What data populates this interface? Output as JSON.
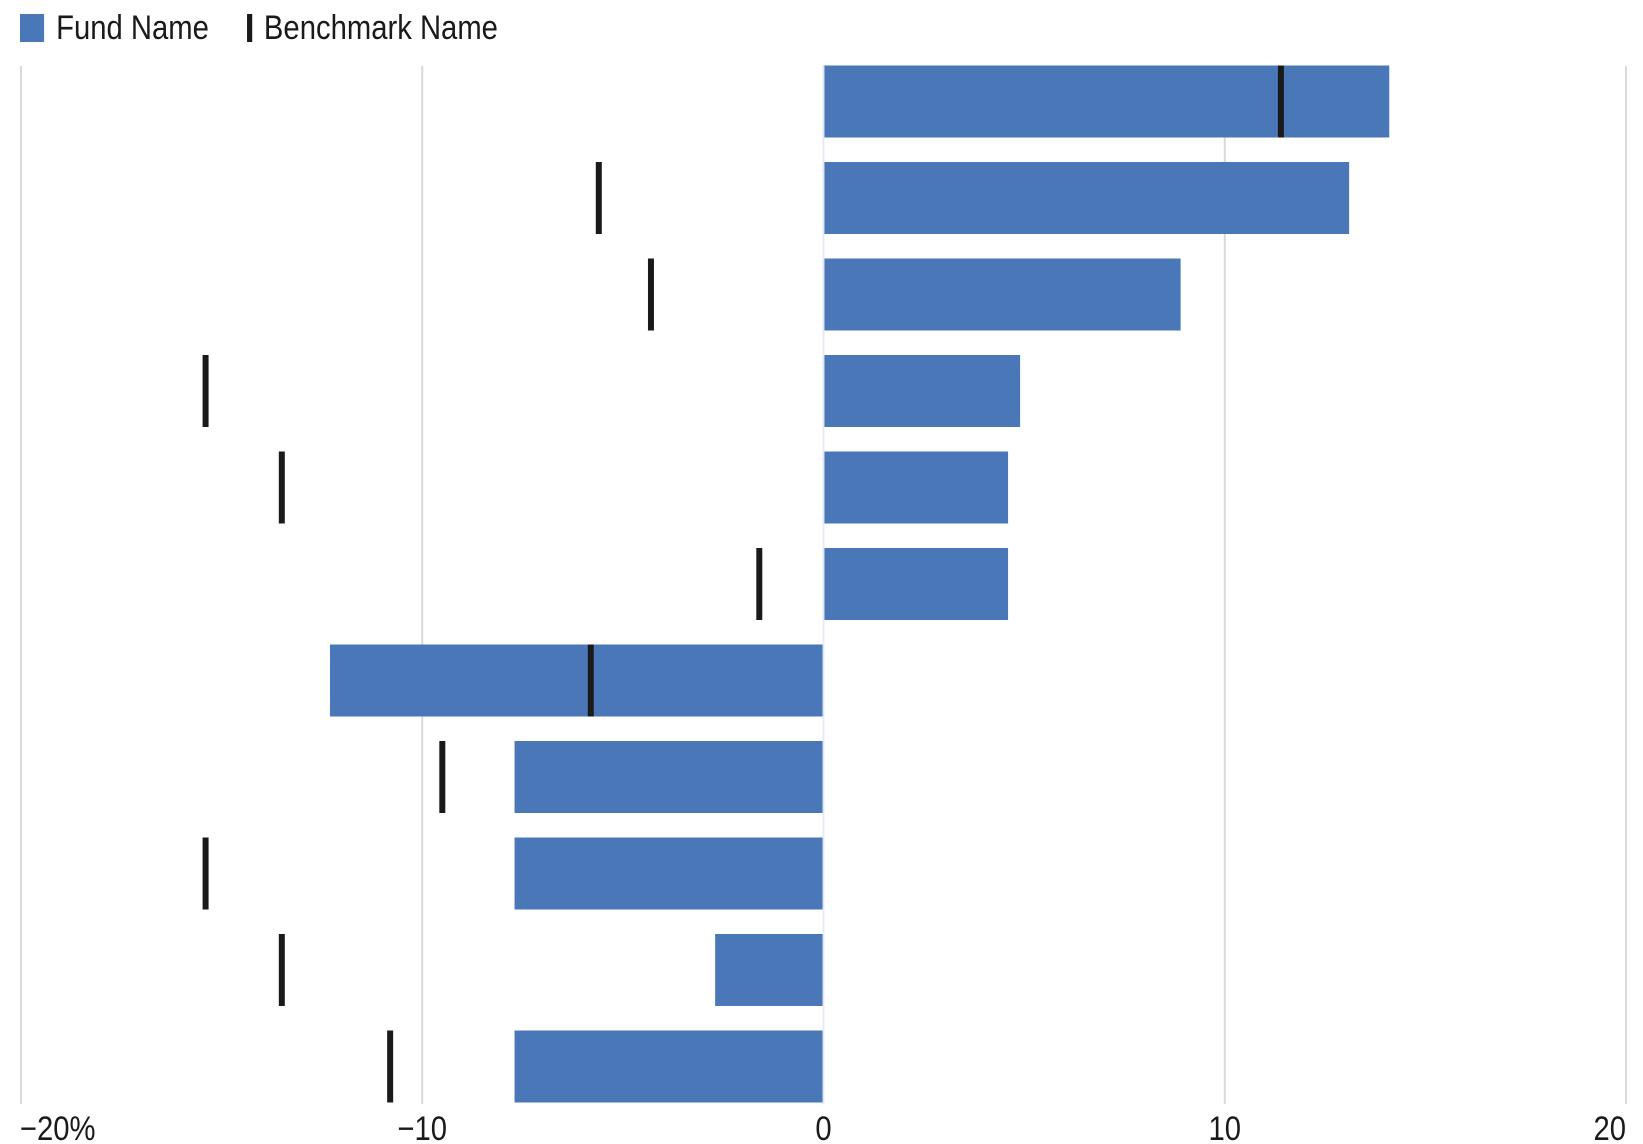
{
  "legend": {
    "fund_label": "Fund Name",
    "benchmark_label": "Benchmark Name"
  },
  "colors": {
    "fund_bar": "#4a77b7",
    "benchmark_tick": "#1a1a1a",
    "gridline": "#d9d9d9"
  },
  "chart_data": {
    "type": "bar",
    "orientation": "horizontal",
    "title": "",
    "xlabel": "",
    "ylabel": "",
    "xlim": [
      -20,
      20
    ],
    "x_ticks": [
      -20,
      -10,
      0,
      10,
      20
    ],
    "x_tick_labels": [
      "−20%",
      "−10",
      "0",
      "10",
      "20"
    ],
    "grid": true,
    "legend_position": "top-left",
    "categories": [
      "",
      "",
      "",
      "",
      "",
      "",
      "",
      "",
      "",
      "",
      ""
    ],
    "series": [
      {
        "name": "Fund Name",
        "kind": "bar",
        "values": [
          14.1,
          13.1,
          8.9,
          4.9,
          4.6,
          4.6,
          -12.3,
          -7.7,
          -7.7,
          -2.7,
          -7.7
        ]
      },
      {
        "name": "Benchmark Name",
        "kind": "marker",
        "values": [
          11.4,
          -5.6,
          -4.3,
          -15.4,
          -13.5,
          -1.6,
          -5.8,
          -9.5,
          -15.4,
          -13.5,
          -10.8
        ]
      }
    ]
  }
}
